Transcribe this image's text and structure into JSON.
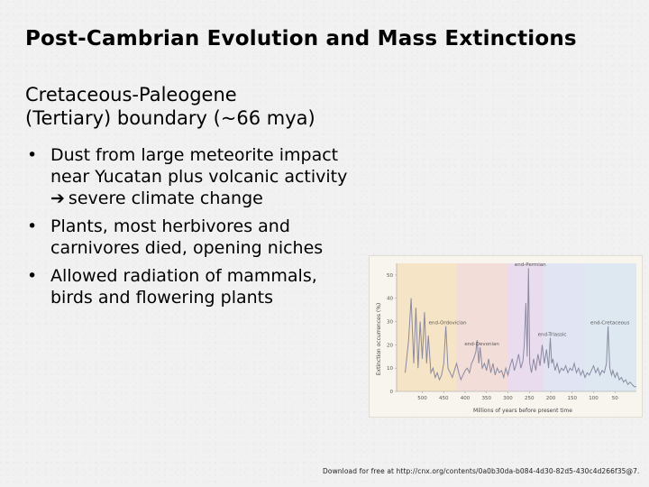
{
  "slide": {
    "title": "Post-Cambrian Evolution and Mass Extinctions",
    "subtitle_line1": "Cretaceous-Paleogene",
    "subtitle_line2": "(Tertiary) boundary (~66 mya)",
    "bullets": [
      {
        "lines": [
          "Dust from large meteorite impact",
          "near Yucatan plus volcanic activity",
          "severe climate change"
        ]
      },
      {
        "lines": [
          "Plants, most herbivores and",
          "carnivores died, opening niches"
        ]
      },
      {
        "lines": [
          "Allowed radiation of mammals,",
          "birds and flowering plants"
        ]
      }
    ],
    "footer": "Download for free at http://cnx.org/contents/0a0b30da-b084-4d30-82d5-430c4d266f35@7."
  },
  "colors": {
    "background": "#f1f1f1",
    "line": "#8a8aa0",
    "band_ordovician": "#f6e4c6",
    "band_devonian": "#f3ddd9",
    "band_permian": "#eadcef",
    "band_triassic": "#e0e4f3",
    "band_cretaceous": "#dde8f1"
  },
  "chart_data": {
    "type": "line",
    "ylabel": "Extinction occurrences (%)",
    "xlabel": "Millions of years before present time",
    "x_reversed": true,
    "xlim": [
      560,
      0
    ],
    "ylim": [
      0,
      55
    ],
    "x_ticks": [
      500,
      450,
      400,
      350,
      300,
      250,
      200,
      150,
      100,
      50
    ],
    "y_ticks": [
      0,
      10,
      20,
      30,
      40,
      50
    ],
    "annotations": [
      {
        "label": "end-Ordovician",
        "x": 445,
        "y": 28
      },
      {
        "label": "end-Devonian",
        "x": 365,
        "y": 19
      },
      {
        "label": "end-Permian",
        "x": 252,
        "y": 53
      },
      {
        "label": "end-Triassic",
        "x": 201,
        "y": 23
      },
      {
        "label": "end-Cretaceous",
        "x": 66,
        "y": 28
      }
    ],
    "series": [
      {
        "x": [
          540,
          532,
          526,
          520,
          515,
          510,
          505,
          500,
          495,
          490,
          486,
          480,
          475,
          470,
          465,
          460,
          455,
          450,
          445,
          440,
          435,
          430,
          425,
          420,
          415,
          410,
          405,
          400,
          395,
          390,
          385,
          380,
          375,
          372,
          368,
          365,
          360,
          355,
          350,
          345,
          340,
          335,
          330,
          325,
          320,
          315,
          310,
          305,
          300,
          295,
          290,
          285,
          280,
          275,
          270,
          265,
          262,
          258,
          255,
          252,
          249,
          245,
          240,
          235,
          230,
          225,
          220,
          215,
          210,
          205,
          201,
          198,
          195,
          190,
          185,
          180,
          175,
          170,
          165,
          160,
          155,
          150,
          145,
          140,
          135,
          130,
          125,
          120,
          115,
          110,
          105,
          100,
          95,
          90,
          85,
          80,
          75,
          70,
          66,
          62,
          58,
          55,
          50,
          45,
          40,
          35,
          30,
          25,
          20,
          15,
          10,
          5,
          0
        ],
        "y": [
          8,
          22,
          40,
          12,
          36,
          10,
          30,
          14,
          34,
          12,
          24,
          8,
          10,
          6,
          8,
          5,
          7,
          12,
          28,
          10,
          8,
          6,
          9,
          12,
          8,
          5,
          7,
          9,
          10,
          8,
          12,
          14,
          17,
          22,
          12,
          19,
          10,
          12,
          9,
          14,
          8,
          12,
          7,
          10,
          8,
          9,
          6,
          10,
          7,
          11,
          14,
          9,
          12,
          16,
          10,
          13,
          20,
          38,
          15,
          53,
          12,
          8,
          14,
          9,
          16,
          11,
          20,
          12,
          18,
          10,
          23,
          12,
          14,
          9,
          12,
          8,
          10,
          9,
          11,
          8,
          10,
          9,
          12,
          8,
          10,
          7,
          9,
          6,
          8,
          7,
          9,
          11,
          8,
          10,
          7,
          9,
          8,
          12,
          28,
          10,
          7,
          9,
          6,
          8,
          5,
          6,
          4,
          5,
          3,
          4,
          3,
          2,
          2
        ]
      }
    ]
  }
}
